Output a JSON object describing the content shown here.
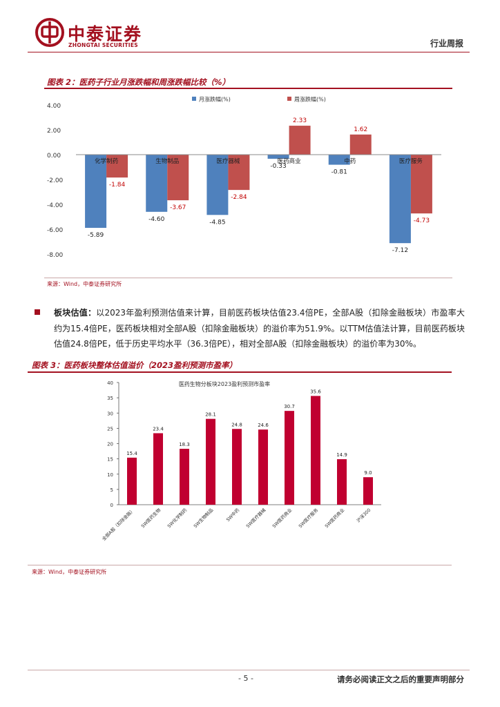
{
  "header": {
    "brand_cn": "中泰证券",
    "brand_en": "ZHONGTAI SECURITIES",
    "report_type": "行业周报"
  },
  "figure2": {
    "title": "图表 2：医药子行业月涨跌幅和周涨跌幅比较（%）",
    "source": "来源：Wind，中泰证券研究所",
    "chart_data": {
      "type": "bar",
      "categories": [
        "化学制药",
        "生物制品",
        "医疗器械",
        "医药商业",
        "中药",
        "医疗服务"
      ],
      "series": [
        {
          "name": "月涨跌幅(%)",
          "values": [
            -5.89,
            -4.6,
            -4.85,
            -0.33,
            -0.81,
            -7.12
          ],
          "labels": [
            "-5.89",
            "-4.60",
            "-4.85",
            "-0.33",
            "-0.81",
            "-7.12"
          ],
          "color": "#4f81bd"
        },
        {
          "name": "周涨跌幅(%)",
          "values": [
            -1.84,
            -3.67,
            -2.84,
            2.33,
            1.62,
            -4.73
          ],
          "labels": [
            "-1.84",
            "-3.67",
            "-2.84",
            "2.33",
            "1.62",
            "-4.73"
          ],
          "color": "#c0504d"
        }
      ],
      "yticks": [
        "4.00",
        "2.00",
        "0.00",
        "-2.00",
        "-4.00",
        "-6.00",
        "-8.00"
      ],
      "ylim": [
        -8,
        4
      ],
      "legend": "top-center",
      "grid": false
    }
  },
  "paragraph": {
    "lead": "板块估值：",
    "body": "以2023年盈利预测估值来计算，目前医药板块估值23.4倍PE，全部A股（扣除金融板块）市盈率大约为15.4倍PE，医药板块相对全部A股（扣除金融板块）的溢价率为51.9%。以TTM估值法计算，目前医药板块估值24.8倍PE，低于历史平均水平（36.3倍PE），相对全部A股（扣除金融板块）的溢价率为30%。"
  },
  "figure3": {
    "title": "图表 3：医药板块整体估值溢价（2023盈利预测市盈率）",
    "source": "来源：Wind，中泰证券研究所",
    "chart_data": {
      "type": "bar",
      "title": "医药生物分板块2023盈利预测市盈率",
      "categories": [
        "全部A股（扣除金融）",
        "SW医药生物",
        "SW化学制药",
        "SW生物制品",
        "SW中药",
        "SW医疗器械",
        "SW医药商业",
        "SW医疗服务",
        "SW医药商业",
        "沪深300"
      ],
      "values": [
        15.4,
        23.4,
        18.3,
        28.1,
        24.8,
        24.6,
        30.7,
        35.6,
        14.9,
        9.0
      ],
      "labels": [
        "15.4",
        "23.4",
        "18.3",
        "28.1",
        "24.8",
        "24.6",
        "30.7",
        "35.6",
        "14.9",
        "9.0"
      ],
      "yticks": [
        "40",
        "35",
        "30",
        "25",
        "20",
        "15",
        "10",
        "5",
        "0"
      ],
      "ylim": [
        0,
        40
      ],
      "color": "#c00030",
      "grid": false
    }
  },
  "footer": {
    "page": "- 5 -",
    "disclaimer": "请务必阅读正文之后的重要声明部分"
  }
}
